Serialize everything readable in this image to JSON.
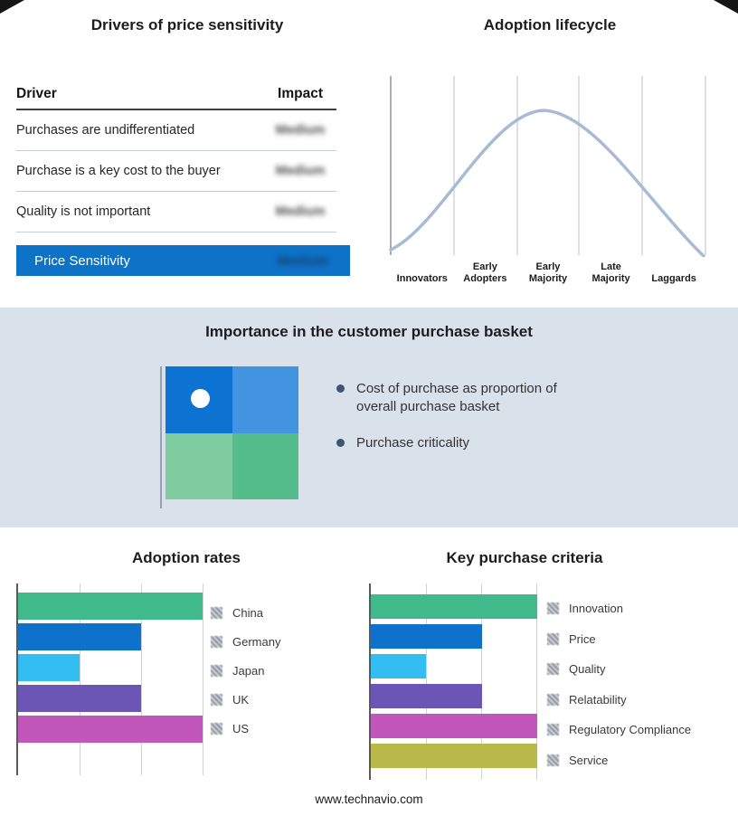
{
  "page": {
    "footer": "www.technavio.com"
  },
  "drivers": {
    "title": "Drivers of price sensitivity",
    "col_driver": "Driver",
    "col_impact": "Impact",
    "rows": [
      {
        "driver": "Purchases are undifferentiated",
        "impact": "Medium"
      },
      {
        "driver": "Purchase is a key cost to the buyer",
        "impact": "Medium"
      },
      {
        "driver": "Quality is not important",
        "impact": "Medium"
      }
    ],
    "summary": {
      "label": "Price Sensitivity",
      "impact": "Medium"
    },
    "highlight_color": "#0e72c7"
  },
  "lifecycle": {
    "title": "Adoption lifecycle",
    "curve_color": "#a7bbd4",
    "stages": [
      {
        "line1": "Innovators",
        "line2": ""
      },
      {
        "line1": "Early",
        "line2": "Adopters"
      },
      {
        "line1": "Early",
        "line2": "Majority"
      },
      {
        "line1": "Late",
        "line2": "Majority"
      },
      {
        "line1": "Laggards",
        "line2": ""
      }
    ]
  },
  "basket": {
    "title": "Importance in the customer purchase basket",
    "bullets": [
      "Cost of purchase as proportion of overall purchase basket",
      "Purchase criticality"
    ],
    "quadrants": {
      "top_left": "#0c73d2",
      "top_right": "#4293e0",
      "bottom_left": "#7fcca0",
      "bottom_right": "#55bd8b"
    }
  },
  "adoption": {
    "title": "Adoption rates"
  },
  "criteria": {
    "title": "Key purchase criteria"
  },
  "chart_data": [
    {
      "type": "table",
      "title": "Drivers of price sensitivity",
      "columns": [
        "Driver",
        "Impact"
      ],
      "rows": [
        [
          "Purchases are undifferentiated",
          "Medium"
        ],
        [
          "Purchase is a key cost to the buyer",
          "Medium"
        ],
        [
          "Quality is not important",
          "Medium"
        ],
        [
          "Price Sensitivity",
          "Medium"
        ]
      ]
    },
    {
      "type": "line",
      "title": "Adoption lifecycle",
      "categories": [
        "Innovators",
        "Early Adopters",
        "Early Majority",
        "Late Majority",
        "Laggards"
      ],
      "values": [
        0.05,
        0.55,
        1.0,
        0.55,
        0.05
      ],
      "note": "bell curve peaking at Early Majority",
      "grid": "vertical dividers between stages",
      "legend_position": "none"
    },
    {
      "type": "bar",
      "title": "Adoption rates",
      "orientation": "horizontal",
      "categories": [
        "China",
        "Germany",
        "Japan",
        "UK",
        "US"
      ],
      "values": [
        3,
        2,
        1,
        2,
        3
      ],
      "xmax": 3,
      "xlabel": "",
      "ylabel": "",
      "colors": [
        "#41ba8b",
        "#0e72cc",
        "#33bdf0",
        "#6b56b6",
        "#c157bb"
      ],
      "legend_position": "right"
    },
    {
      "type": "bar",
      "title": "Key purchase criteria",
      "orientation": "horizontal",
      "categories": [
        "Innovation",
        "Price",
        "Quality",
        "Relatability",
        "Regulatory Compliance",
        "Service"
      ],
      "values": [
        3,
        2,
        1,
        2,
        3,
        3
      ],
      "xmax": 3,
      "xlabel": "",
      "ylabel": "",
      "colors": [
        "#41ba8b",
        "#0e72cc",
        "#33bdf0",
        "#6b56b6",
        "#c157bb",
        "#b8b948"
      ],
      "legend_position": "right"
    }
  ]
}
